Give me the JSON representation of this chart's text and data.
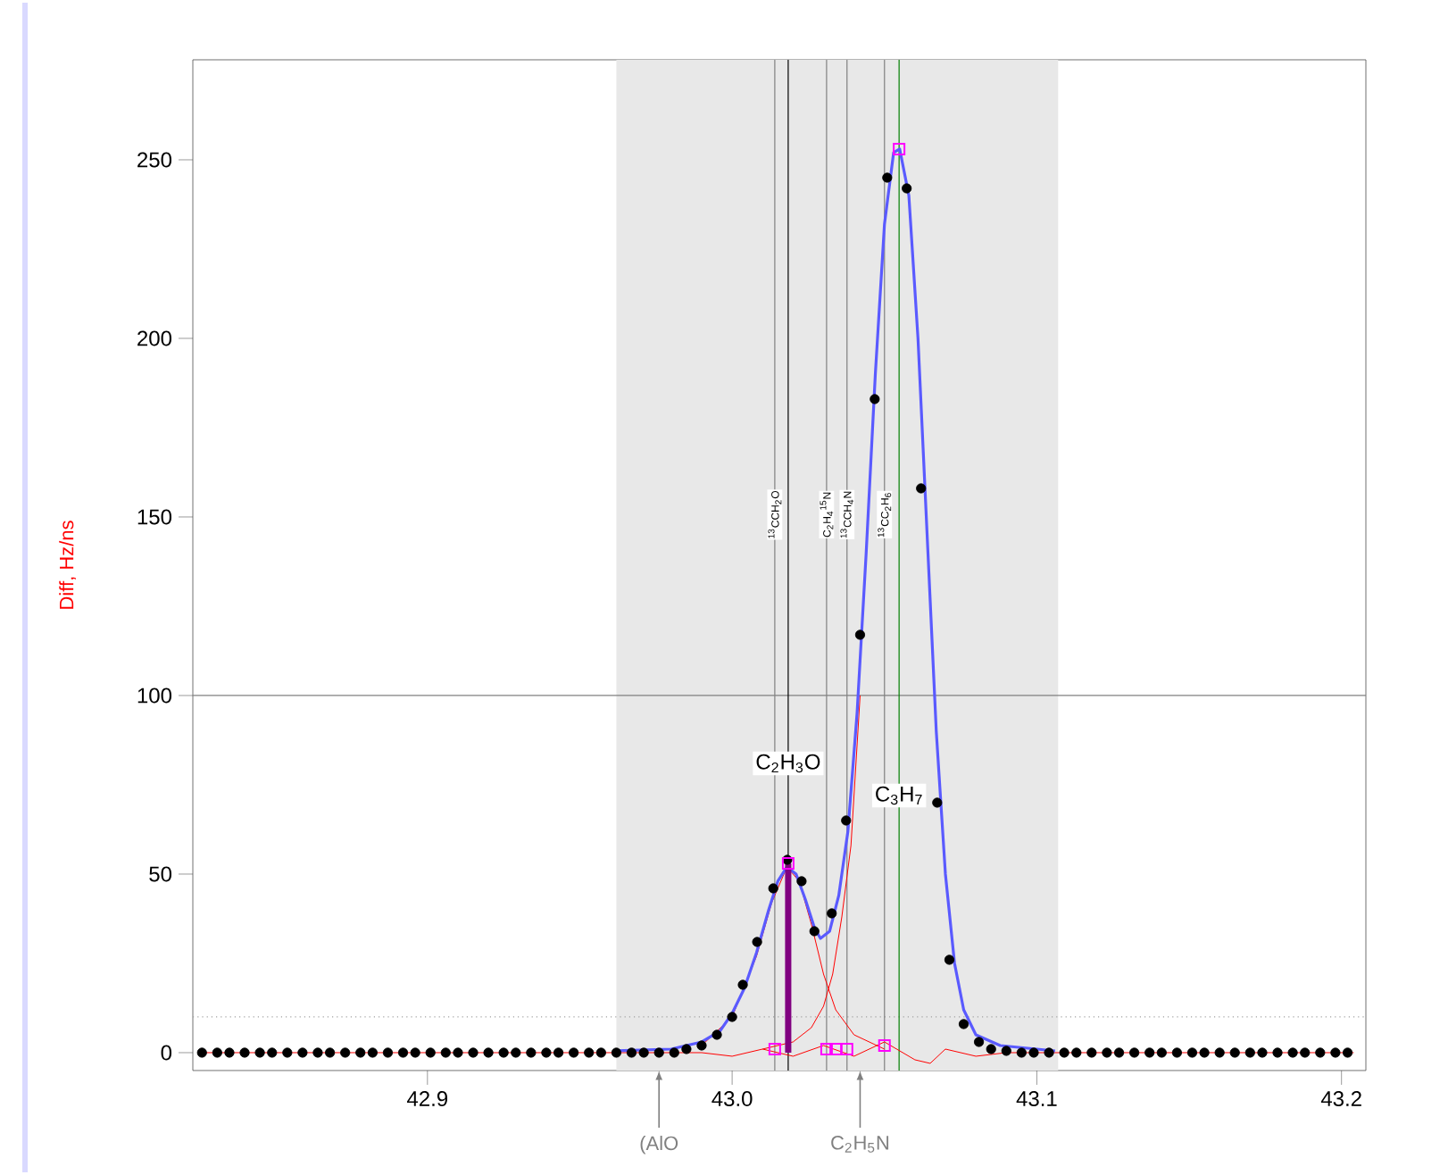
{
  "chart_data": {
    "type": "scatter",
    "ylabel": "Diff, Hz/ns",
    "xlim": [
      42.823,
      43.208
    ],
    "ylim": [
      -5,
      278
    ],
    "xticks": [
      42.9,
      {
        "value": 43.0,
        "label": "43.0"
      },
      43.1,
      43.2
    ],
    "yticks": [
      0,
      50,
      100,
      150,
      200,
      250
    ],
    "grid": false,
    "bands": [
      {
        "axis": "x",
        "from": 42.962,
        "to": 43.107,
        "label": null,
        "color": "#e8e8e8"
      }
    ],
    "ref_lines": [
      {
        "axis": "y",
        "value": 100,
        "label": null,
        "color": "#808080",
        "line_style": "solid"
      },
      {
        "axis": "y",
        "value": 10,
        "label": null,
        "color": "#a0a0a0",
        "line_style": "dotted"
      },
      {
        "axis": "x",
        "value": 43.014,
        "label": "$^{13}$CCH$_{2}$O",
        "color": "#808080",
        "line_style": "solid"
      },
      {
        "axis": "x",
        "value": 43.0184,
        "label": null,
        "color": "#000000",
        "line_style": "solid"
      },
      {
        "axis": "x",
        "value": 43.031,
        "label": "C$_{2}$H$_{4}$$^{15}$N",
        "color": "#808080",
        "line_style": "solid"
      },
      {
        "axis": "x",
        "value": 43.0377,
        "label": "$^{13}$CCH$_{4}$N",
        "color": "#808080",
        "line_style": "solid"
      },
      {
        "axis": "x",
        "value": 43.05,
        "label": "$^{13}$CC$_{2}$H$_{6}$",
        "color": "#808080",
        "line_style": "solid"
      },
      {
        "axis": "x",
        "value": 43.0548,
        "label": null,
        "color": "#008000",
        "line_style": "solid"
      }
    ],
    "annotations": [
      {
        "text": "C$_{2}$H$_{3}$O",
        "x": 43.0184,
        "y": 81
      },
      {
        "text": "C$_{3}$H$_{7}$",
        "x": 43.0548,
        "y": 72
      },
      {
        "text": "(AlO",
        "x": 42.976,
        "y": -5
      },
      {
        "text": "C$_{2}$H$_{5}$N",
        "x": 43.042,
        "y": -5
      }
    ],
    "series": [
      {
        "type": "line",
        "color": "#ff0000",
        "x": [
          42.826,
          42.99,
          43.0,
          43.01,
          43.02,
          43.03,
          43.04,
          43.05,
          43.06,
          43.065,
          43.07,
          43.08,
          43.09,
          43.204
        ],
        "values": [
          0,
          0,
          -1,
          1,
          -1,
          2,
          -1,
          3,
          -2,
          -3,
          1,
          -1,
          0,
          0
        ]
      },
      {
        "type": "line",
        "color": "#ff0000",
        "x": [
          42.99,
          43.0,
          43.008,
          43.013,
          43.018,
          43.022,
          43.026,
          43.03,
          43.034,
          43.04,
          43.05
        ],
        "values": [
          2,
          10,
          27,
          42,
          52,
          48,
          36,
          22,
          12,
          5,
          1
        ]
      },
      {
        "type": "line",
        "color": "#ff0000",
        "x": [
          43.01,
          43.02,
          43.026,
          43.03,
          43.033,
          43.036,
          43.039,
          43.042
        ],
        "values": [
          1,
          3,
          7,
          13,
          22,
          38,
          58,
          100
        ]
      },
      {
        "type": "line",
        "color": "#5a5aff",
        "x": [
          42.962,
          42.98,
          42.99,
          42.996,
          43.0,
          43.004,
          43.008,
          43.012,
          43.015,
          43.018,
          43.021,
          43.024,
          43.027,
          43.029,
          43.032,
          43.035,
          43.038,
          43.041,
          43.044,
          43.047,
          43.05,
          43.053,
          43.055,
          43.058,
          43.061,
          43.064,
          43.067,
          43.07,
          43.073,
          43.076,
          43.08,
          43.088,
          43.106
        ],
        "values": [
          0.5,
          1,
          3,
          6,
          11,
          18,
          28,
          40,
          48,
          52,
          50,
          43,
          35,
          32,
          34,
          44,
          62,
          95,
          140,
          190,
          232,
          252,
          253,
          240,
          200,
          145,
          90,
          50,
          25,
          12,
          5,
          2,
          0.5
        ]
      },
      {
        "color": "#000000",
        "marker": "circle",
        "x": [
          42.826,
          42.831,
          42.835,
          42.84,
          42.845,
          42.849,
          42.854,
          42.859,
          42.864,
          42.868,
          42.873,
          42.878,
          42.882,
          42.887,
          42.892,
          42.896,
          42.901,
          42.906,
          42.91,
          42.915,
          42.92,
          42.925,
          42.929,
          42.934,
          42.939,
          42.943,
          42.948,
          42.953,
          42.957,
          42.962,
          42.967,
          42.971,
          42.976,
          42.981,
          42.985,
          42.99,
          42.995,
          43.0,
          43.0035,
          43.0082,
          43.0135,
          43.0181,
          43.0228,
          43.027,
          43.0327,
          43.0374,
          43.042,
          43.0468,
          43.0509,
          43.0573,
          43.062,
          43.0673,
          43.0713,
          43.076,
          43.081,
          43.085,
          43.09,
          43.095,
          43.099,
          43.104,
          43.109,
          43.113,
          43.118,
          43.123,
          43.127,
          43.132,
          43.137,
          43.141,
          43.146,
          43.151,
          43.155,
          43.16,
          43.165,
          43.17,
          43.174,
          43.179,
          43.184,
          43.188,
          43.193,
          43.198,
          43.202
        ],
        "values": [
          0,
          0,
          0,
          0,
          0,
          0,
          0,
          0,
          0,
          0,
          0,
          0,
          0,
          0,
          0,
          0,
          0,
          0,
          0,
          0,
          0,
          0,
          0,
          0,
          0,
          0,
          0,
          0,
          0,
          0,
          0,
          0,
          0,
          0,
          1,
          2,
          5,
          10,
          19,
          31,
          46,
          54,
          48,
          34,
          39,
          65,
          117,
          183,
          245,
          242,
          158,
          70,
          26,
          8,
          3,
          1,
          0.5,
          0,
          0,
          0,
          0,
          0,
          0,
          0,
          0,
          0,
          0,
          0,
          0,
          0,
          0,
          0,
          0,
          0,
          0,
          0,
          0,
          0,
          0,
          0,
          0
        ]
      },
      {
        "type": "bar",
        "color": "#800080",
        "x": [
          43.0184
        ],
        "values": [
          53
        ]
      },
      {
        "type": "scatter",
        "color": "#ff00ff",
        "marker": "square",
        "x": [
          43.0184,
          43.0548,
          43.014,
          43.031,
          43.034,
          43.0377,
          43.05
        ],
        "values": [
          53,
          253,
          1,
          1,
          1,
          1,
          2
        ]
      }
    ]
  }
}
